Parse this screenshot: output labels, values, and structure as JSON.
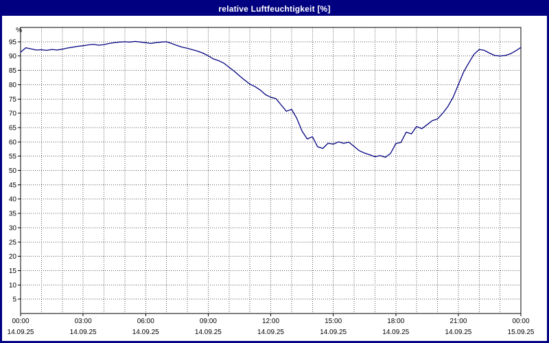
{
  "window": {
    "title": "relative Luftfeuchtigkeit [%]"
  },
  "colors": {
    "frame": "#000080",
    "title_bg": "#000080",
    "title_text": "#ffffff",
    "line": "#000080",
    "grid": "#555555",
    "axis": "#000000",
    "background": "#ffffff"
  },
  "chart_data": {
    "type": "line",
    "title": "relative Luftfeuchtigkeit [%]",
    "xlabel": "",
    "ylabel": "%",
    "ylim": [
      0,
      100
    ],
    "yticks": [
      5,
      10,
      15,
      20,
      25,
      30,
      35,
      40,
      45,
      50,
      55,
      60,
      65,
      70,
      75,
      80,
      85,
      90,
      95
    ],
    "grid": "dotted; vertical gridline every hour, horizontal every 5 %",
    "legend_position": "none",
    "x_hours_range": [
      0,
      24
    ],
    "x_start_hour": 0,
    "x_interval_hours": 0.25,
    "x_tick_hours": [
      0,
      3,
      6,
      9,
      12,
      15,
      18,
      21,
      24
    ],
    "x_tick_labels": [
      "00:00",
      "03:00",
      "06:00",
      "09:00",
      "12:00",
      "15:00",
      "18:00",
      "21:00",
      "00:00"
    ],
    "x_date_labels": [
      "14.09.25",
      "14.09.25",
      "14.09.25",
      "14.09.25",
      "14.09.25",
      "14.09.25",
      "14.09.25",
      "14.09.25",
      "15.09.25"
    ],
    "series": [
      {
        "name": "relative Luftfeuchtigkeit",
        "values": [
          91.3,
          92.9,
          92.5,
          92.1,
          92.2,
          92.0,
          92.3,
          92.1,
          92.4,
          92.8,
          93.1,
          93.4,
          93.6,
          93.9,
          94.1,
          93.8,
          94.0,
          94.4,
          94.7,
          94.9,
          95.0,
          94.9,
          95.1,
          94.9,
          94.7,
          94.4,
          94.7,
          94.9,
          95.0,
          94.4,
          93.7,
          93.1,
          92.7,
          92.2,
          91.7,
          91.0,
          90.1,
          89.0,
          88.4,
          87.5,
          86.1,
          84.7,
          83.1,
          81.6,
          80.2,
          79.3,
          78.1,
          76.5,
          75.6,
          75.1,
          72.9,
          70.7,
          71.4,
          68.2,
          63.8,
          61.0,
          61.8,
          58.3,
          57.7,
          59.5,
          59.2,
          60.0,
          59.5,
          59.9,
          58.4,
          56.9,
          56.1,
          55.5,
          54.8,
          55.2,
          54.6,
          56.0,
          59.4,
          59.8,
          63.4,
          62.8,
          65.4,
          64.6,
          66.0,
          67.4,
          68.0,
          70.0,
          72.4,
          75.6,
          80.0,
          84.4,
          87.6,
          90.6,
          92.3,
          92.0,
          91.0,
          90.2,
          90.0,
          90.2,
          90.8,
          91.8,
          93.0
        ]
      }
    ]
  }
}
